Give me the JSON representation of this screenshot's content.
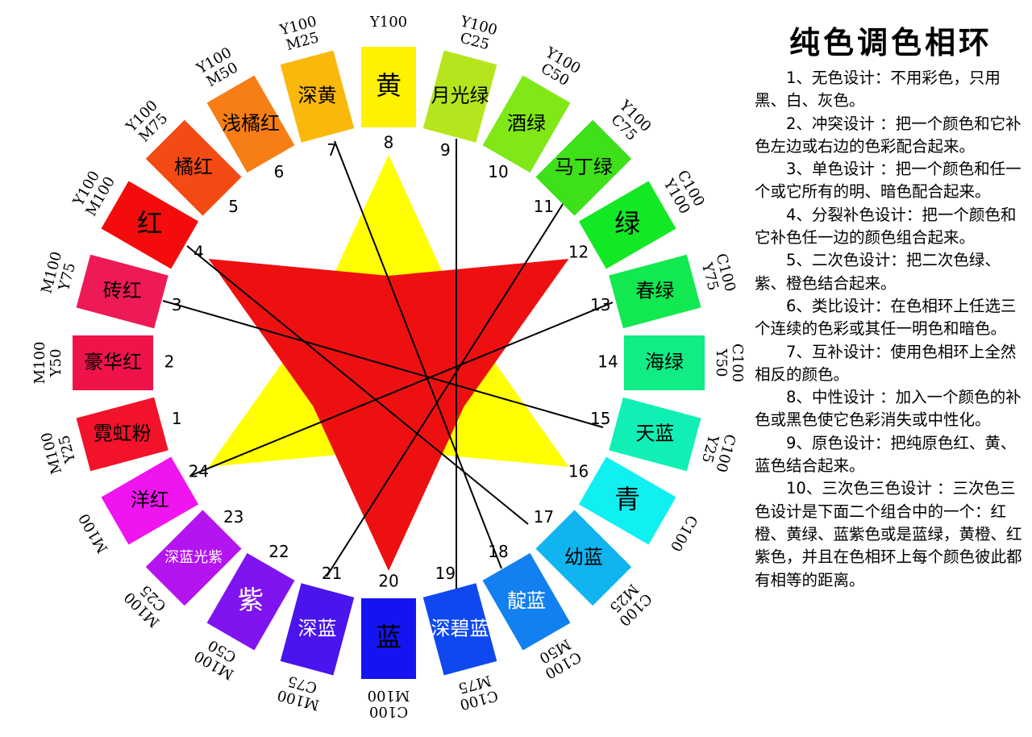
{
  "title": "纯色调色相环",
  "colors": [
    {
      "number": "1",
      "name": "霓虹粉",
      "code": [
        "M100",
        "Y25"
      ],
      "color": "#f2122a",
      "text_color": "#000"
    },
    {
      "number": "2",
      "name": "豪华红",
      "code": [
        "M100",
        "Y50"
      ],
      "color": "#f0134a",
      "text_color": "#000"
    },
    {
      "number": "3",
      "name": "砖红",
      "code": [
        "M100",
        "Y75"
      ],
      "color": "#ee1a55",
      "text_color": "#000"
    },
    {
      "number": "4",
      "name": "红",
      "code": [
        "Y100",
        "M100"
      ],
      "color": "#f40c0c",
      "text_color": "#000"
    },
    {
      "number": "5",
      "name": "橘红",
      "code": [
        "Y100",
        "M75"
      ],
      "color": "#f44a14",
      "text_color": "#000"
    },
    {
      "number": "6",
      "name": "浅橘红",
      "code": [
        "Y100",
        "M50"
      ],
      "color": "#f77e14",
      "text_color": "#000"
    },
    {
      "number": "7",
      "name": "深黄",
      "code": [
        "Y100",
        "M25"
      ],
      "color": "#fbb80c",
      "text_color": "#000"
    },
    {
      "number": "8",
      "name": "黄",
      "code": [
        "Y100"
      ],
      "color": "#fff200",
      "text_color": "#000"
    },
    {
      "number": "9",
      "name": "月光绿",
      "code": [
        "Y100",
        "C25"
      ],
      "color": "#b5e61d",
      "text_color": "#000"
    },
    {
      "number": "10",
      "name": "酒绿",
      "code": [
        "Y100",
        "C50"
      ],
      "color": "#80e817",
      "text_color": "#000"
    },
    {
      "number": "11",
      "name": "马丁绿",
      "code": [
        "Y100",
        "C75"
      ],
      "color": "#3de019",
      "text_color": "#000"
    },
    {
      "number": "12",
      "name": "绿",
      "code": [
        "C100",
        "Y100"
      ],
      "color": "#13e825",
      "text_color": "#000"
    },
    {
      "number": "13",
      "name": "春绿",
      "code": [
        "C100",
        "Y75"
      ],
      "color": "#12e850",
      "text_color": "#000"
    },
    {
      "number": "14",
      "name": "海绿",
      "code": [
        "C100",
        "Y50"
      ],
      "color": "#10ec86",
      "text_color": "#000"
    },
    {
      "number": "15",
      "name": "天蓝",
      "code": [
        "C100",
        "Y25"
      ],
      "color": "#10f0b5",
      "text_color": "#000"
    },
    {
      "number": "16",
      "name": "青",
      "code": [
        "C100"
      ],
      "color": "#10f0f0",
      "text_color": "#000"
    },
    {
      "number": "17",
      "name": "幼蓝",
      "code": [
        "C100",
        "M25"
      ],
      "color": "#10b5ef",
      "text_color": "#000"
    },
    {
      "number": "18",
      "name": "靛蓝",
      "code": [
        "C100",
        "M50"
      ],
      "color": "#1280f0",
      "text_color": "#fff"
    },
    {
      "number": "19",
      "name": "深碧蓝",
      "code": [
        "C100",
        "M75"
      ],
      "color": "#1048f0",
      "text_color": "#fff"
    },
    {
      "number": "20",
      "name": "蓝",
      "code": [
        "C100",
        "M100"
      ],
      "color": "#1414f0",
      "text_color": "#000"
    },
    {
      "number": "21",
      "name": "深蓝",
      "code": [
        "M100",
        "C75"
      ],
      "color": "#4a14ec",
      "text_color": "#fff"
    },
    {
      "number": "22",
      "name": "紫",
      "code": [
        "M100",
        "C50"
      ],
      "color": "#8014f0",
      "text_color": "#fff"
    },
    {
      "number": "23",
      "name": "深蓝光紫",
      "code": [
        "M100",
        "C25"
      ],
      "color": "#b414f0",
      "text_color": "#fff"
    },
    {
      "number": "24",
      "name": "洋红",
      "code": [
        "M100"
      ],
      "color": "#f014f0",
      "text_color": "#000"
    }
  ],
  "notes": [
    "1、无色设计：不用彩色，只用黑、白、灰色。",
    "2、冲突设计 ：把一个颜色和它补色左边或右边的色彩配合起来。",
    "3、单色设计 ：把一个颜色和任一个或它所有的明、暗色配合起来。",
    "4、分裂补色设计：把一个颜色和它补色任一边的颜色组合起来。",
    "5、二次色设计：把二次色绿、紫、橙色结合起来。",
    "6、类比设计：在色相环上任选三个连续的色彩或其任一明色和暗色。",
    "7、互补设计：使用色相环上全然相反的颜色。",
    "8、中性设计 ：加入一个颜色的补色或黑色使它色彩消失或中性化。",
    "9、原色设计：把纯原色红、黄、蓝色结合起来。",
    "10、三次色三色设计 ：三次色三色设计是下面二个组合中的一个：红橙、黄绿、蓝紫色或是蓝绿，黄橙、红紫色，并且在色相环上每个颜色彼此都有相等的距离。"
  ]
}
